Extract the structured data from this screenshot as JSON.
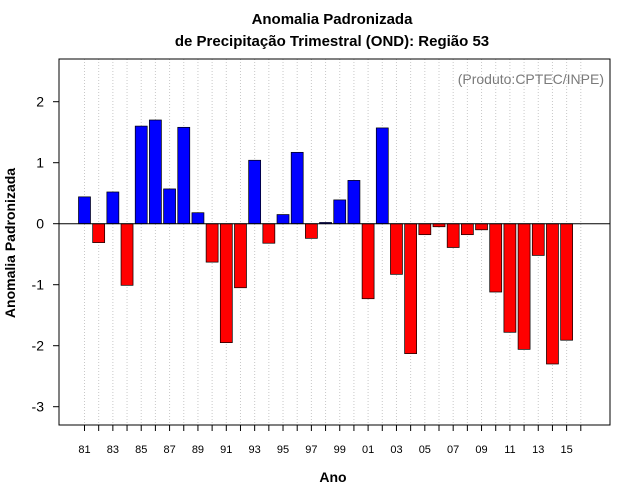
{
  "chart_data": {
    "type": "bar",
    "title": "Anomalia Padronizada",
    "subtitle": "de Precipitação Trimestral (OND): Região 53",
    "xlabel": "Ano",
    "ylabel": "Anomalia Padronizada",
    "annotation": "(Produto:CPTEC/INPE)",
    "ylim": [
      -3.3,
      2.7
    ],
    "yticks": [
      -3,
      -2,
      -1,
      0,
      1,
      2
    ],
    "ytick_labels": [
      "-3",
      "-2",
      "-1",
      "0",
      "1",
      "2"
    ],
    "xtick_labels": [
      "81",
      "83",
      "85",
      "87",
      "89",
      "91",
      "93",
      "95",
      "97",
      "99",
      "01",
      "03",
      "05",
      "07",
      "09",
      "11",
      "13",
      "15"
    ],
    "grid": "vertical dotted",
    "colors": {
      "positive": "#0000ff",
      "negative": "#ff0000",
      "grid": "#c8c8c8"
    },
    "categories": [
      "1981",
      "1982",
      "1983",
      "1984",
      "1985",
      "1986",
      "1987",
      "1988",
      "1989",
      "1990",
      "1991",
      "1992",
      "1993",
      "1994",
      "1995",
      "1996",
      "1997",
      "1998",
      "1999",
      "2000",
      "2001",
      "2002",
      "2003",
      "2004",
      "2005",
      "2006",
      "2007",
      "2008",
      "2009",
      "2010",
      "2011",
      "2012",
      "2013",
      "2014",
      "2015"
    ],
    "values": [
      0.44,
      -0.31,
      0.52,
      -1.01,
      1.6,
      1.7,
      0.57,
      1.58,
      0.18,
      -0.63,
      -1.95,
      -1.05,
      1.04,
      -0.32,
      0.15,
      1.17,
      -0.24,
      0.02,
      0.39,
      0.71,
      -1.23,
      1.57,
      -0.83,
      -2.13,
      -0.18,
      -0.05,
      -0.39,
      -0.18,
      -0.1,
      -1.12,
      -1.78,
      -2.06,
      -0.52,
      -2.3,
      -1.91
    ]
  }
}
